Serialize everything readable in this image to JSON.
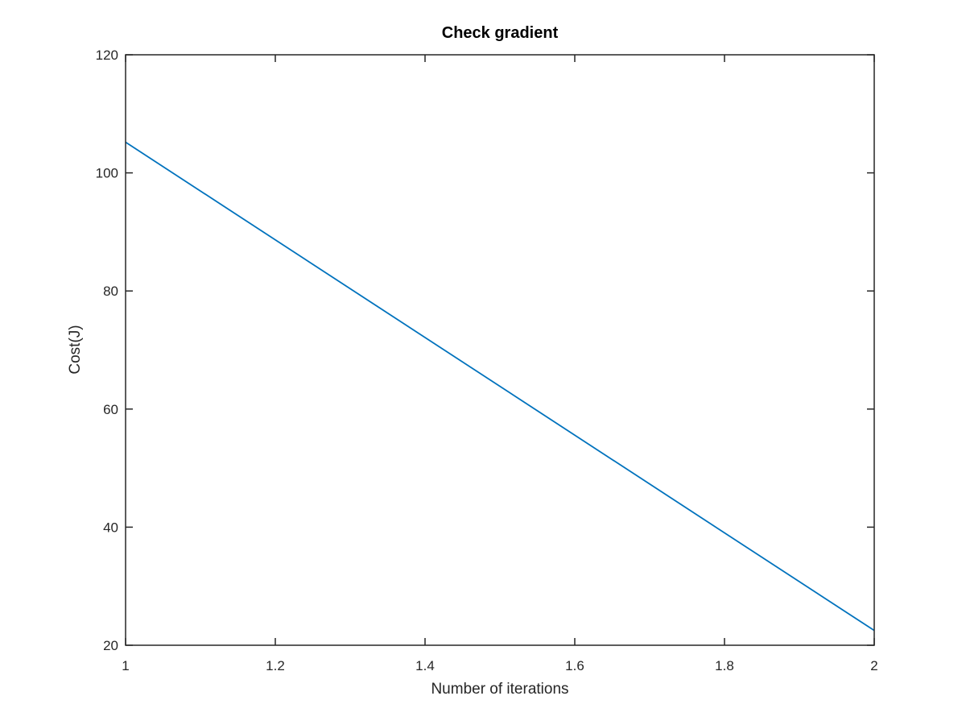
{
  "chart_data": {
    "type": "line",
    "title": "Check gradient",
    "xlabel": "Number of iterations",
    "ylabel": "Cost(J)",
    "xlim": [
      1,
      2
    ],
    "ylim": [
      20,
      120
    ],
    "xticks": [
      1,
      1.2,
      1.4,
      1.6,
      1.8,
      2
    ],
    "yticks": [
      20,
      40,
      60,
      80,
      100,
      120
    ],
    "xtick_labels": [
      "1",
      "1.2",
      "1.4",
      "1.6",
      "1.8",
      "2"
    ],
    "ytick_labels": [
      "20",
      "40",
      "60",
      "80",
      "100",
      "120"
    ],
    "grid": false,
    "series": [
      {
        "x": [
          1,
          2
        ],
        "y": [
          105.2,
          22.5
        ],
        "color": "#0072bd"
      }
    ]
  }
}
